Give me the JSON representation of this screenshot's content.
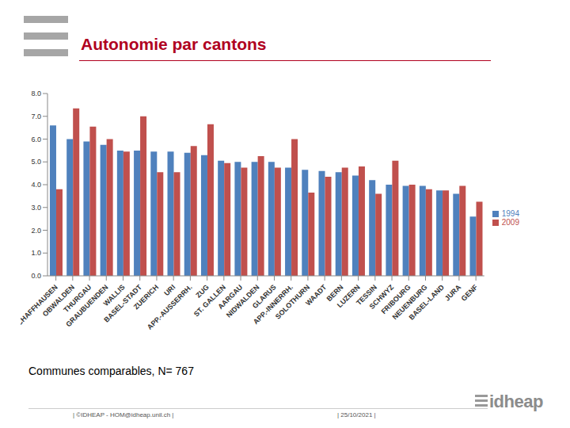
{
  "chart_data": {
    "type": "bar",
    "categories": [
      "SCHAFFHAUSEN",
      "OBWALDEN",
      "THURGAU",
      "GRAUBUENDEN",
      "WALLIS",
      "BASEL-STADT",
      "ZUERICH",
      "URI",
      "APP.-AUSSERRH.",
      "ZUG",
      "ST. GALLEN",
      "AARGAU",
      "NIDWALDEN",
      "GLARUS",
      "APP.-INNERRH.",
      "SOLOTHURN",
      "WAADT",
      "BERN",
      "LUZERN",
      "TESSIN",
      "SCHWYZ",
      "FRIBOURG",
      "NEUENBURG",
      "BASEL-LAND",
      "JURA",
      "GENF"
    ],
    "series": [
      {
        "name": "1994",
        "color": "#4f81bd",
        "values": [
          6.6,
          6.0,
          5.9,
          5.75,
          5.5,
          5.5,
          5.45,
          5.45,
          5.4,
          5.3,
          5.05,
          5.0,
          5.0,
          5.0,
          4.75,
          4.65,
          4.6,
          4.55,
          4.4,
          4.2,
          4.0,
          3.95,
          3.95,
          3.75,
          3.6,
          2.6
        ]
      },
      {
        "name": "2009",
        "color": "#c0504d",
        "values": [
          3.8,
          7.35,
          6.55,
          6.0,
          5.45,
          7.0,
          4.55,
          4.55,
          5.7,
          6.65,
          4.95,
          4.75,
          5.25,
          4.75,
          6.0,
          3.65,
          4.35,
          4.75,
          4.8,
          3.6,
          5.05,
          4.0,
          3.8,
          3.75,
          3.95,
          3.25
        ]
      }
    ],
    "ylim": [
      0,
      8
    ],
    "yticks": [
      {
        "value": 0,
        "label": "0.0"
      },
      {
        "value": 1,
        "label": "1.0"
      },
      {
        "value": 2,
        "label": "2.0"
      },
      {
        "value": 3,
        "label": "3.0"
      },
      {
        "value": 4,
        "label": "4.0"
      },
      {
        "value": 5,
        "label": "5.0"
      },
      {
        "value": 6,
        "label": "6.0"
      },
      {
        "value": 7,
        "label": "7.0"
      },
      {
        "value": 8,
        "label": "8.0"
      }
    ],
    "grid": false,
    "legend": "right"
  },
  "slide": {
    "title": "Autonomie par cantons",
    "note": "Communes comparables, N= 767",
    "footer_left": "| ©IDHEAP - HOM@idheap.unil.ch |",
    "footer_date": "| 25/10/2021 |",
    "logo": "idheap"
  }
}
